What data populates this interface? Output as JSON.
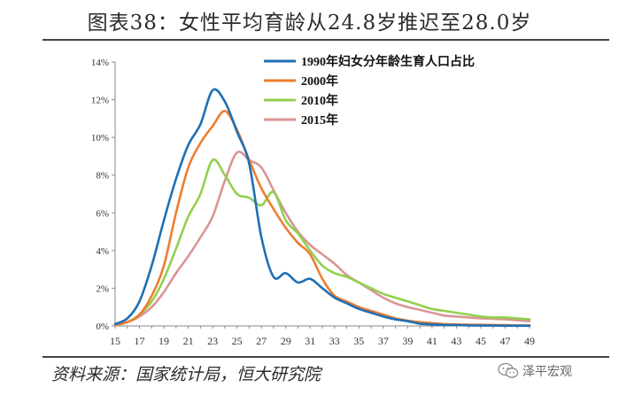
{
  "header": {
    "title": "图表38：女性平均育龄从24.8岁推迟至28.0岁"
  },
  "footer": {
    "source": "资料来源：国家统计局，恒大研究院"
  },
  "watermark": {
    "text": "泽平宏观",
    "icon": "wechat-icon"
  },
  "chart_data": {
    "type": "line",
    "title": "",
    "xlabel": "",
    "ylabel": "",
    "xlim": [
      15,
      49
    ],
    "ylim": [
      0,
      14
    ],
    "x_ticks": [
      "15",
      "17",
      "19",
      "21",
      "23",
      "25",
      "27",
      "29",
      "31",
      "33",
      "35",
      "37",
      "39",
      "41",
      "43",
      "45",
      "47",
      "49"
    ],
    "y_ticks": [
      "0%",
      "2%",
      "4%",
      "6%",
      "8%",
      "10%",
      "12%",
      "14%"
    ],
    "grid": false,
    "legend": "top-right",
    "x": [
      15,
      16,
      17,
      18,
      19,
      20,
      21,
      22,
      23,
      24,
      25,
      26,
      27,
      28,
      29,
      30,
      31,
      32,
      33,
      34,
      35,
      36,
      37,
      38,
      39,
      40,
      41,
      42,
      43,
      44,
      45,
      46,
      47,
      48,
      49
    ],
    "series": [
      {
        "name": "1990年妇女分年龄生育人口占比",
        "color": "#1f6fb4",
        "values": [
          0.1,
          0.4,
          1.3,
          3.2,
          5.6,
          7.8,
          9.6,
          10.7,
          12.5,
          11.9,
          10.3,
          8.6,
          4.7,
          2.6,
          2.8,
          2.3,
          2.5,
          2.0,
          1.5,
          1.2,
          0.9,
          0.7,
          0.5,
          0.35,
          0.25,
          0.12,
          0.08,
          0.05,
          0.04,
          0.03,
          0.02,
          0.02,
          0.01,
          0.01,
          0.01
        ]
      },
      {
        "name": "2000年",
        "color": "#ed7d31",
        "values": [
          0.05,
          0.2,
          0.6,
          1.6,
          3.2,
          6.0,
          8.4,
          9.7,
          10.6,
          11.4,
          10.4,
          8.8,
          7.3,
          6.2,
          5.2,
          4.4,
          3.8,
          2.5,
          1.6,
          1.3,
          1.0,
          0.8,
          0.6,
          0.4,
          0.28,
          0.2,
          0.15,
          0.1,
          0.08,
          0.07,
          0.06,
          0.05,
          0.04,
          0.03,
          0.03
        ]
      },
      {
        "name": "2010年",
        "color": "#92d050",
        "values": [
          0.05,
          0.2,
          0.6,
          1.3,
          2.5,
          4.1,
          5.8,
          7.0,
          8.8,
          8.0,
          7.0,
          6.8,
          6.4,
          7.1,
          5.6,
          4.9,
          4.0,
          3.2,
          2.8,
          2.6,
          2.3,
          2.0,
          1.7,
          1.5,
          1.3,
          1.1,
          0.9,
          0.8,
          0.7,
          0.6,
          0.5,
          0.45,
          0.45,
          0.4,
          0.35
        ]
      },
      {
        "name": "2015年",
        "color": "#d99594",
        "values": [
          0.05,
          0.2,
          0.5,
          1.0,
          1.8,
          2.8,
          3.7,
          4.7,
          5.8,
          7.7,
          9.2,
          8.8,
          8.4,
          7.2,
          6.0,
          5.0,
          4.3,
          3.8,
          3.3,
          2.7,
          2.3,
          1.9,
          1.5,
          1.2,
          1.0,
          0.85,
          0.7,
          0.55,
          0.5,
          0.45,
          0.4,
          0.38,
          0.35,
          0.3,
          0.25
        ]
      }
    ]
  }
}
